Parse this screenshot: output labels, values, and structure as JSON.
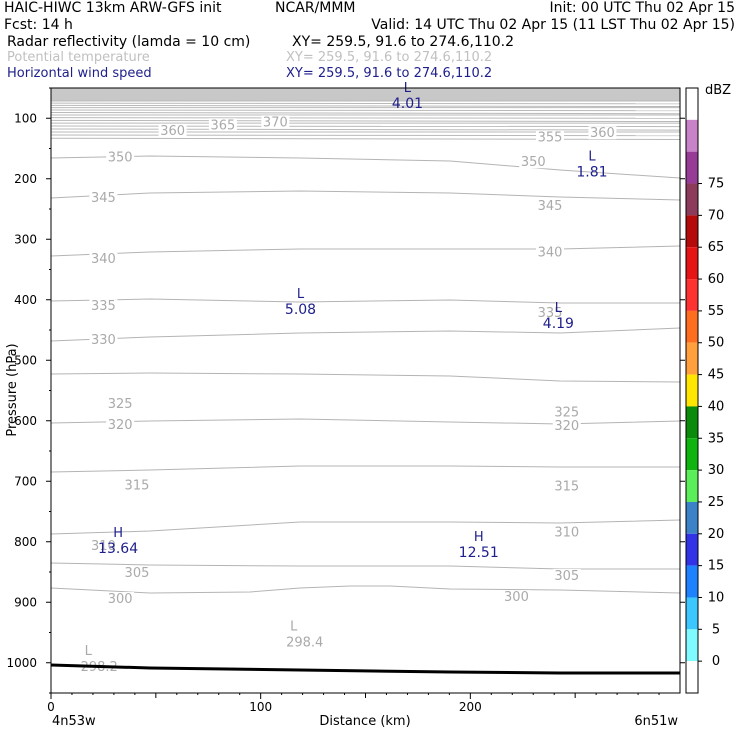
{
  "header": {
    "title_left": "HAIC-HIWC 13km ARW-GFS init",
    "org": "NCAR/MMM",
    "init": "Init: 00 UTC Thu 02 Apr 15",
    "fcst": "Fcst:   14 h",
    "valid": "Valid: 14 UTC Thu 02 Apr 15 (11 LST Thu 02 Apr 15)",
    "fields": [
      {
        "name": "Radar reflectivity (lamda = 10 cm)",
        "xy": "XY= 259.5, 91.6 to 274.6,110.2",
        "color": "#000000"
      },
      {
        "name": "Potential temperature",
        "xy": "XY= 259.5, 91.6 to 274.6,110.2",
        "color": "#b4b4b4"
      },
      {
        "name": "Horizontal wind speed",
        "xy": "XY= 259.5, 91.6 to 274.6,110.2",
        "color": "#1e1e8c"
      }
    ]
  },
  "axes": {
    "ylabel": "Pressure (hPa)",
    "xlabel": "Distance (km)",
    "left_point": "4n53w",
    "right_point": "6n51w"
  },
  "colorbar": {
    "unit": "dBZ",
    "ticks": [
      "0",
      "5",
      "10",
      "15",
      "20",
      "25",
      "30",
      "35",
      "40",
      "45",
      "50",
      "55",
      "60",
      "65",
      "70",
      "75"
    ],
    "colors": [
      "#ffffff",
      "#7ffaff",
      "#3cc8ff",
      "#1e82ff",
      "#3232e6",
      "#3c82c8",
      "#5aef5a",
      "#0fb40f",
      "#0a8c0a",
      "#ffe600",
      "#ffa03c",
      "#ff6e1e",
      "#ff3232",
      "#e61414",
      "#b40a0a",
      "#8c3c5a",
      "#963c96",
      "#c882c8",
      "#ffffff"
    ]
  },
  "chart_data": {
    "type": "cross-section",
    "x_axis": {
      "range": [
        0,
        300
      ],
      "ticks": [
        0,
        100,
        200
      ],
      "unit": "km"
    },
    "y_axis": {
      "range": [
        1050,
        50
      ],
      "ticks": [
        100,
        200,
        300,
        400,
        500,
        600,
        700,
        800,
        900,
        1000
      ],
      "unit": "hPa",
      "inverted": true
    },
    "potential_temperature_labels": [
      {
        "value": "360",
        "x": 58,
        "p": 124
      },
      {
        "value": "365",
        "x": 82,
        "p": 115
      },
      {
        "value": "370",
        "x": 107,
        "p": 110
      },
      {
        "value": "355",
        "x": 238,
        "p": 135
      },
      {
        "value": "360",
        "x": 263,
        "p": 128
      },
      {
        "value": "350",
        "x": 33,
        "p": 168
      },
      {
        "value": "350",
        "x": 230,
        "p": 176
      },
      {
        "value": "345",
        "x": 25,
        "p": 235
      },
      {
        "value": "345",
        "x": 238,
        "p": 248
      },
      {
        "value": "340",
        "x": 25,
        "p": 336
      },
      {
        "value": "340",
        "x": 238,
        "p": 325
      },
      {
        "value": "335",
        "x": 25,
        "p": 414
      },
      {
        "value": "335",
        "x": 238,
        "p": 425
      },
      {
        "value": "330",
        "x": 25,
        "p": 470
      },
      {
        "value": "325",
        "x": 33,
        "p": 576
      },
      {
        "value": "325",
        "x": 246,
        "p": 590
      },
      {
        "value": "320",
        "x": 33,
        "p": 610
      },
      {
        "value": "320",
        "x": 246,
        "p": 612
      },
      {
        "value": "315",
        "x": 41,
        "p": 710
      },
      {
        "value": "315",
        "x": 246,
        "p": 712
      },
      {
        "value": "310",
        "x": 25,
        "p": 810
      },
      {
        "value": "310",
        "x": 246,
        "p": 788
      },
      {
        "value": "305",
        "x": 41,
        "p": 855
      },
      {
        "value": "305",
        "x": 246,
        "p": 860
      },
      {
        "value": "300",
        "x": 33,
        "p": 898
      },
      {
        "value": "300",
        "x": 222,
        "p": 895
      }
    ],
    "theta_extrema": [
      {
        "type": "L",
        "value": "298.4",
        "x": 121,
        "p": 970
      },
      {
        "type": "L",
        "value": "298.2",
        "x": 23,
        "p": 1010
      }
    ],
    "wind_speed_extrema": [
      {
        "type": "L",
        "value": "4.01",
        "x": 170,
        "p": 80
      },
      {
        "type": "L",
        "value": "1.81",
        "x": 258,
        "p": 193
      },
      {
        "type": "L",
        "value": "5.08",
        "x": 119,
        "p": 420
      },
      {
        "type": "L",
        "value": "4.19",
        "x": 242,
        "p": 443
      },
      {
        "type": "H",
        "value": "13.64",
        "x": 32,
        "p": 815
      },
      {
        "type": "H",
        "value": "12.51",
        "x": 204,
        "p": 822
      }
    ]
  }
}
